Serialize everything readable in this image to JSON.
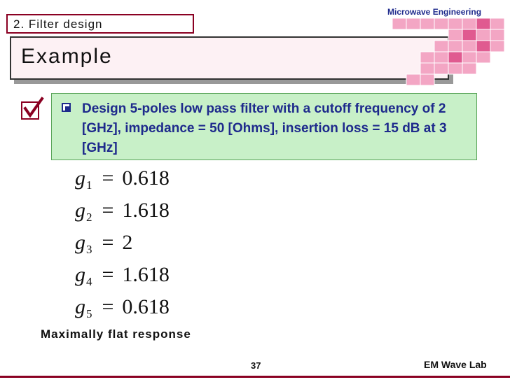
{
  "header": {
    "section": "2. Filter design",
    "course": "Microwave Engineering",
    "title": "Example"
  },
  "problem": {
    "text": "Design 5-poles low pass filter with a cutoff frequency of 2 [GHz], impedance = 50 [Ohms], insertion loss = 15 dB at 3 [GHz]"
  },
  "equations": [
    {
      "sym": "g",
      "sub": "1",
      "eq": "=",
      "val": "0.618"
    },
    {
      "sym": "g",
      "sub": "2",
      "eq": "=",
      "val": "1.618"
    },
    {
      "sym": "g",
      "sub": "3",
      "eq": "=",
      "val": "2"
    },
    {
      "sym": "g",
      "sub": "4",
      "eq": "=",
      "val": "1.618"
    },
    {
      "sym": "g",
      "sub": "5",
      "eq": "=",
      "val": "0.618"
    }
  ],
  "footnote": "Maximally flat response",
  "footer": {
    "page": "37",
    "lab": "EM Wave Lab"
  },
  "colors": {
    "accent": "#8a0022",
    "text_blue": "#1e2a8c",
    "problem_bg": "#c8f0c8",
    "deco_pink": "#f0a0c0"
  }
}
